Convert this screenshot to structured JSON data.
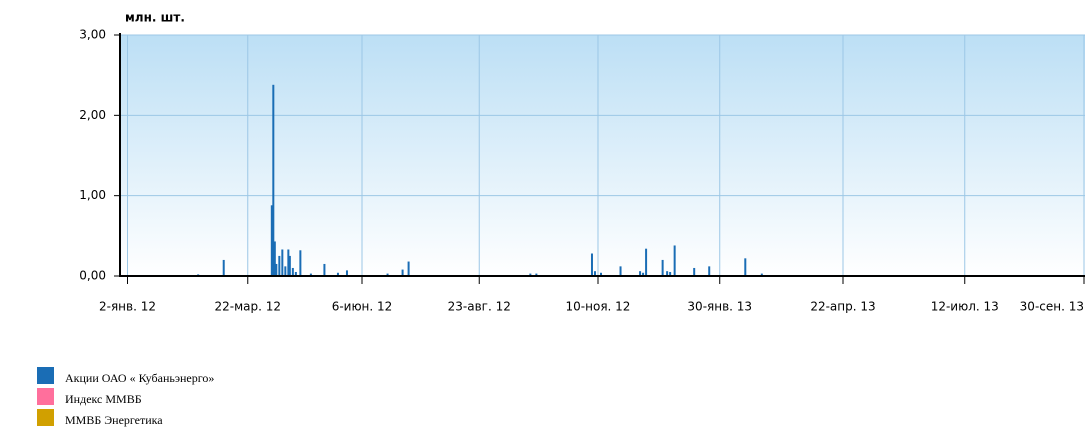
{
  "chart_data": {
    "type": "bar",
    "y_label": "млн. шт.",
    "xlim": [
      "2011-12-28",
      "2013-09-30"
    ],
    "xticks": [
      {
        "value": "2012-01-02",
        "label": "2-янв. 12"
      },
      {
        "value": "2012-03-22",
        "label": "22-мар. 12"
      },
      {
        "value": "2012-06-06",
        "label": "6-июн. 12"
      },
      {
        "value": "2012-08-23",
        "label": "23-авг. 12"
      },
      {
        "value": "2012-11-10",
        "label": "10-ноя. 12"
      },
      {
        "value": "2013-01-30",
        "label": "30-янв. 13"
      },
      {
        "value": "2013-04-22",
        "label": "22-апр. 13"
      },
      {
        "value": "2013-07-12",
        "label": "12-июл. 13"
      },
      {
        "value": "2013-09-30",
        "label": "30-сен. 13"
      }
    ],
    "ylim": [
      0,
      3
    ],
    "yticks": [
      {
        "value": 0,
        "label": "0,00"
      },
      {
        "value": 1,
        "label": "1,00"
      },
      {
        "value": 2,
        "label": "2,00"
      },
      {
        "value": 3,
        "label": "3,00"
      }
    ],
    "grid": true,
    "series": [
      {
        "name": "Акции ОАО « Кубаньэнерго»",
        "color": "#1a6db5",
        "x": [
          "2012-02-18",
          "2012-03-06",
          "2012-04-07",
          "2012-04-08",
          "2012-04-09",
          "2012-04-10",
          "2012-04-12",
          "2012-04-14",
          "2012-04-16",
          "2012-04-18",
          "2012-04-19",
          "2012-04-21",
          "2012-04-23",
          "2012-04-26",
          "2012-05-03",
          "2012-05-12",
          "2012-05-21",
          "2012-05-27",
          "2012-06-23",
          "2012-07-03",
          "2012-07-07",
          "2012-09-26",
          "2012-09-30",
          "2012-11-06",
          "2012-11-08",
          "2012-11-12",
          "2012-11-25",
          "2012-12-08",
          "2012-12-10",
          "2012-12-12",
          "2012-12-23",
          "2012-12-26",
          "2012-12-28",
          "2012-12-31",
          "2013-01-13",
          "2013-01-23",
          "2013-02-16",
          "2013-02-27"
        ],
        "values": [
          0.02,
          0.2,
          0.88,
          2.38,
          0.43,
          0.15,
          0.25,
          0.33,
          0.12,
          0.33,
          0.25,
          0.1,
          0.05,
          0.32,
          0.03,
          0.15,
          0.04,
          0.07,
          0.03,
          0.08,
          0.18,
          0.03,
          0.03,
          0.28,
          0.06,
          0.04,
          0.12,
          0.06,
          0.04,
          0.34,
          0.2,
          0.06,
          0.05,
          0.38,
          0.1,
          0.12,
          0.22,
          0.03
        ]
      },
      {
        "name": "Индекс ММВБ",
        "color": "#ff6f9c",
        "x": [],
        "values": []
      },
      {
        "name": "ММВБ Энергетика",
        "color": "#d1a000",
        "x": [],
        "values": []
      }
    ]
  }
}
